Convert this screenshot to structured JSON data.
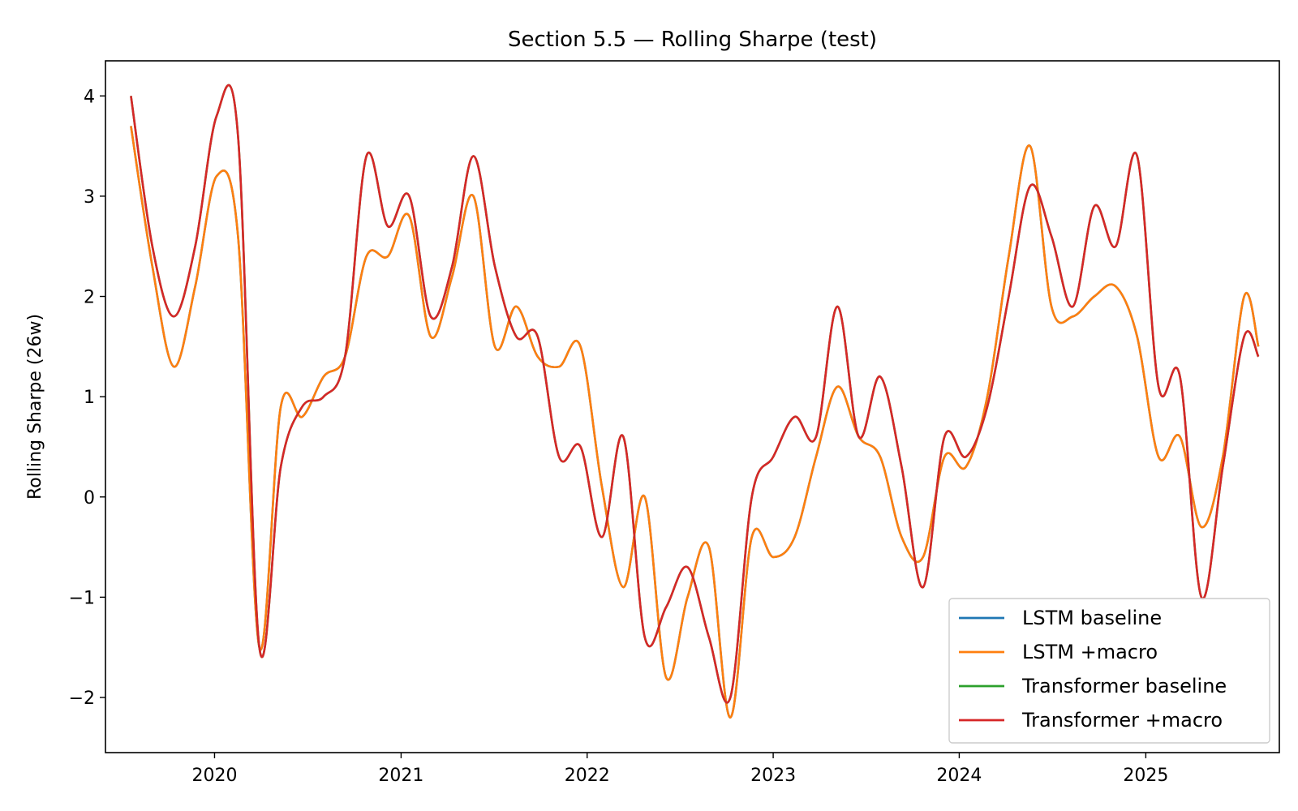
{
  "chart_data": {
    "type": "line",
    "title": "Section 5.5 — Rolling Sharpe (test)",
    "xlabel": "",
    "ylabel": "Rolling Sharpe (26w)",
    "xlim": [
      "2019-06-01",
      "2025-09-20"
    ],
    "ylim": [
      -2.55,
      4.35
    ],
    "x_ticks": [
      "2020",
      "2021",
      "2022",
      "2023",
      "2024",
      "2025"
    ],
    "y_ticks": [
      -2,
      -1,
      0,
      1,
      2,
      3,
      4
    ],
    "y_tick_labels": [
      "−2",
      "−1",
      "0",
      "1",
      "2",
      "3",
      "4"
    ],
    "grid": false,
    "legend_position": "lower right",
    "x_dates": [
      "2019-07-21",
      "2019-09-01",
      "2019-10-13",
      "2019-11-24",
      "2020-01-05",
      "2020-02-16",
      "2020-03-29",
      "2020-05-10",
      "2020-06-21",
      "2020-08-02",
      "2020-09-13",
      "2020-10-25",
      "2020-12-06",
      "2021-01-17",
      "2021-02-28",
      "2021-04-11",
      "2021-05-23",
      "2021-07-04",
      "2021-08-15",
      "2021-09-26",
      "2021-11-07",
      "2021-12-19",
      "2022-01-30",
      "2022-03-13",
      "2022-04-24",
      "2022-06-05",
      "2022-07-17",
      "2022-08-28",
      "2022-10-09",
      "2022-11-20",
      "2023-01-01",
      "2023-02-12",
      "2023-03-26",
      "2023-05-07",
      "2023-06-18",
      "2023-07-30",
      "2023-09-10",
      "2023-10-22",
      "2023-12-03",
      "2024-01-14",
      "2024-02-25",
      "2024-04-07",
      "2024-05-19",
      "2024-06-30",
      "2024-08-11",
      "2024-09-22",
      "2024-11-03",
      "2024-12-15",
      "2025-01-26",
      "2025-03-09",
      "2025-04-20",
      "2025-06-01",
      "2025-07-13",
      "2025-08-10"
    ],
    "series": [
      {
        "name": "LSTM baseline",
        "color": "#1f77b4",
        "values": [
          3.7,
          2.3,
          1.3,
          2.1,
          3.2,
          2.6,
          -1.5,
          0.9,
          0.8,
          1.2,
          1.4,
          2.4,
          2.4,
          2.8,
          1.6,
          2.2,
          3.0,
          1.5,
          1.9,
          1.4,
          1.3,
          1.5,
          0.1,
          -0.9,
          0.0,
          -1.8,
          -1.0,
          -0.5,
          -2.2,
          -0.4,
          -0.6,
          -0.4,
          0.4,
          1.1,
          0.6,
          0.4,
          -0.4,
          -0.6,
          0.4,
          0.3,
          1.0,
          2.4,
          3.5,
          1.9,
          1.8,
          2.0,
          2.1,
          1.6,
          0.4,
          0.6,
          -0.3,
          0.4,
          2.0,
          1.5
        ]
      },
      {
        "name": "LSTM +macro",
        "color": "#ff7f0e",
        "values": [
          3.7,
          2.3,
          1.3,
          2.1,
          3.2,
          2.6,
          -1.5,
          0.9,
          0.8,
          1.2,
          1.4,
          2.4,
          2.4,
          2.8,
          1.6,
          2.2,
          3.0,
          1.5,
          1.9,
          1.4,
          1.3,
          1.5,
          0.1,
          -0.9,
          0.0,
          -1.8,
          -1.0,
          -0.5,
          -2.2,
          -0.4,
          -0.6,
          -0.4,
          0.4,
          1.1,
          0.6,
          0.4,
          -0.4,
          -0.6,
          0.4,
          0.3,
          1.0,
          2.4,
          3.5,
          1.9,
          1.8,
          2.0,
          2.1,
          1.6,
          0.4,
          0.6,
          -0.3,
          0.4,
          2.0,
          1.5
        ]
      },
      {
        "name": "Transformer baseline",
        "color": "#2ca02c",
        "values": [
          4.0,
          2.5,
          1.8,
          2.5,
          3.8,
          3.6,
          -1.5,
          0.3,
          0.9,
          1.0,
          1.4,
          3.4,
          2.7,
          3.0,
          1.8,
          2.3,
          3.4,
          2.3,
          1.6,
          1.6,
          0.4,
          0.5,
          -0.4,
          0.6,
          -1.4,
          -1.1,
          -0.7,
          -1.4,
          -2.0,
          0.0,
          0.4,
          0.8,
          0.6,
          1.9,
          0.6,
          1.2,
          0.3,
          -0.9,
          0.6,
          0.4,
          0.9,
          2.0,
          3.1,
          2.6,
          1.9,
          2.9,
          2.5,
          3.4,
          1.1,
          1.2,
          -1.0,
          0.3,
          1.6,
          1.4
        ]
      },
      {
        "name": "Transformer +macro",
        "color": "#d62728",
        "values": [
          4.0,
          2.5,
          1.8,
          2.5,
          3.8,
          3.6,
          -1.5,
          0.3,
          0.9,
          1.0,
          1.4,
          3.4,
          2.7,
          3.0,
          1.8,
          2.3,
          3.4,
          2.3,
          1.6,
          1.6,
          0.4,
          0.5,
          -0.4,
          0.6,
          -1.4,
          -1.1,
          -0.7,
          -1.4,
          -2.0,
          0.0,
          0.4,
          0.8,
          0.6,
          1.9,
          0.6,
          1.2,
          0.3,
          -0.9,
          0.6,
          0.4,
          0.9,
          2.0,
          3.1,
          2.6,
          1.9,
          2.9,
          2.5,
          3.4,
          1.1,
          1.2,
          -1.0,
          0.3,
          1.6,
          1.4
        ]
      }
    ]
  }
}
